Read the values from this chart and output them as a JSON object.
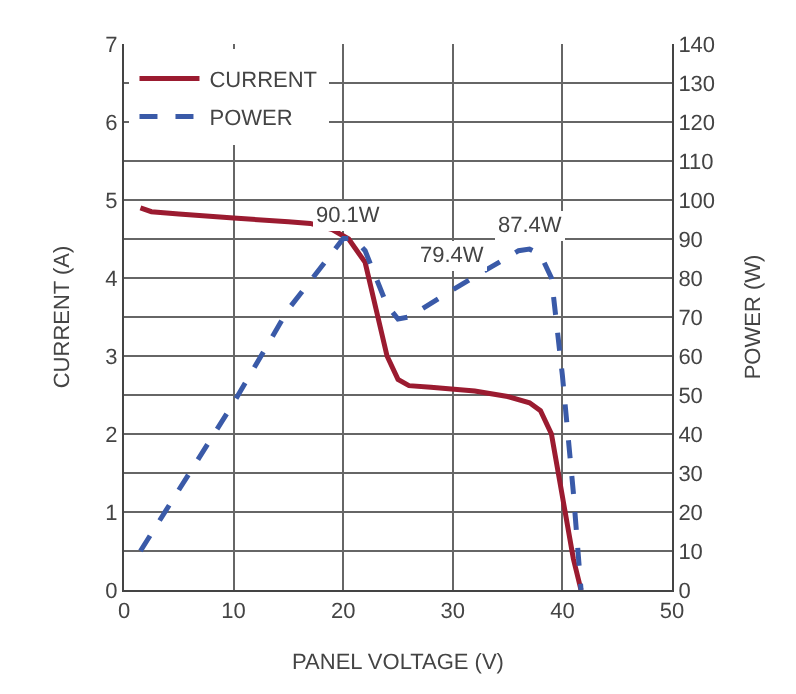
{
  "chart_data": {
    "type": "line",
    "xlabel": "PANEL VOLTAGE (V)",
    "ylabel": "CURRENT (A)",
    "y2label": "POWER (W)",
    "xlim": [
      0,
      50
    ],
    "xticks": [
      0,
      10,
      20,
      30,
      40,
      50
    ],
    "ylim": [
      0,
      7
    ],
    "yticks": [
      0,
      1,
      2,
      3,
      4,
      5,
      6,
      7
    ],
    "y2lim": [
      0,
      140
    ],
    "y2ticks": [
      0,
      10,
      20,
      30,
      40,
      50,
      60,
      70,
      80,
      90,
      100,
      110,
      120,
      130,
      140
    ],
    "grid": true,
    "legend": "top left",
    "series": [
      {
        "name": "CURRENT",
        "color": "#9b1b30",
        "line_style": "solid",
        "x": [
          1.5,
          2.5,
          5,
          10,
          15,
          17,
          19,
          20.5,
          22,
          23,
          24,
          25,
          26,
          28,
          32,
          35,
          37,
          38,
          39,
          40,
          41,
          41.7
        ],
        "values": [
          4.9,
          4.85,
          4.82,
          4.77,
          4.72,
          4.7,
          4.62,
          4.5,
          4.2,
          3.6,
          3.0,
          2.7,
          2.62,
          2.6,
          2.55,
          2.48,
          2.4,
          2.3,
          2.0,
          1.2,
          0.4,
          0
        ]
      },
      {
        "name": "POWER",
        "color": "#3a5aa8",
        "line_style": "dashed",
        "axis": "y2",
        "x": [
          1.5,
          10,
          15,
          20,
          21,
          22,
          24,
          25,
          26,
          30,
          33,
          36,
          37,
          38,
          39,
          40,
          41,
          41.7
        ],
        "values": [
          10,
          48,
          72,
          90.1,
          90.1,
          87,
          73,
          69.5,
          70,
          77,
          82,
          87,
          87.4,
          86,
          80,
          55,
          25,
          0
        ]
      }
    ],
    "annotations": [
      {
        "text": "90.1W",
        "x": 20.5,
        "y": 4.5
      },
      {
        "text": "79.4W",
        "x": 30,
        "y": 3.97
      },
      {
        "text": "87.4W",
        "x": 37,
        "y": 4.37
      }
    ]
  }
}
